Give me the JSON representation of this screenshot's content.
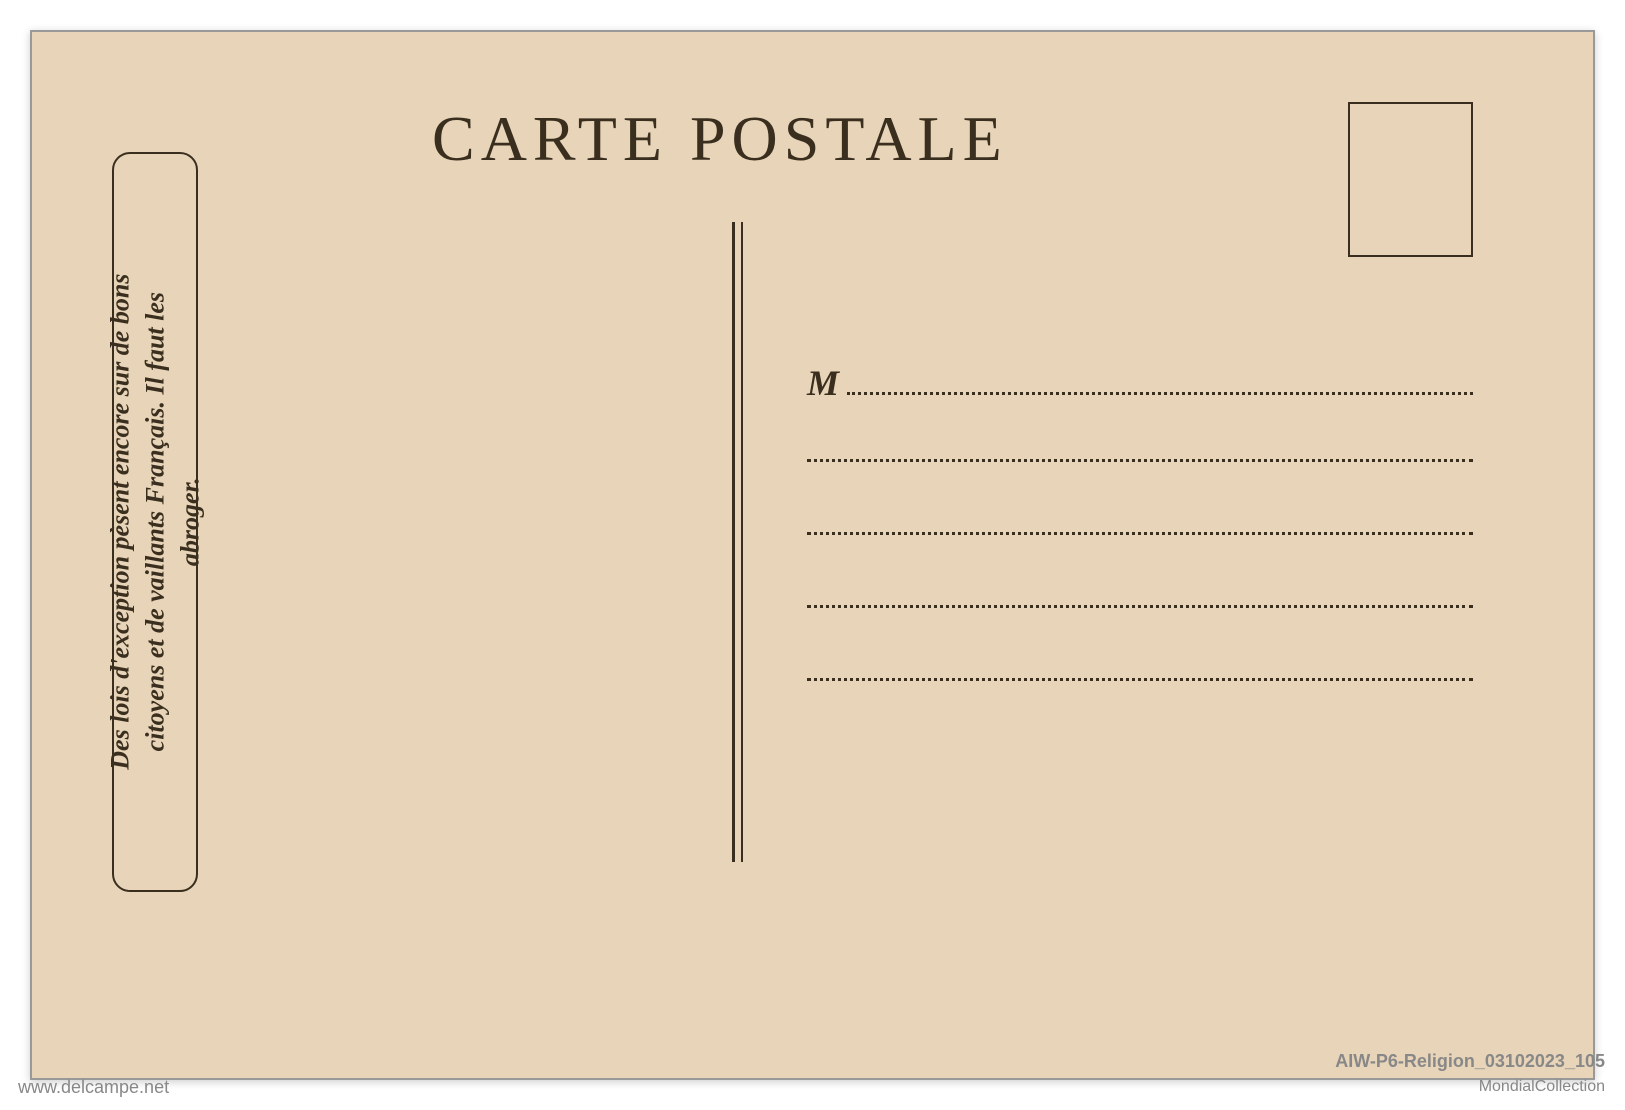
{
  "postcard": {
    "title": "CARTE POSTALE",
    "sideNote": {
      "line1": "Des lois d'exception pèsent encore sur de bons",
      "line2": "citoyens et de vaillants Français. Il faut les",
      "line3": "abroger."
    },
    "address": {
      "prefix": "M"
    },
    "colors": {
      "paper": "#e8d4b8",
      "ink": "#3a2f1f",
      "border": "#999999"
    }
  },
  "watermarks": {
    "bottomLeft": "www.delcampe.net",
    "bottomRightTop": "AIW-P6-Religion_03102023_105",
    "bottomRightBottom": "MondialCollection"
  }
}
